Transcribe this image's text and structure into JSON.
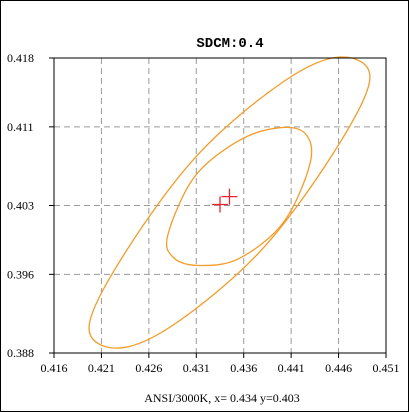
{
  "chart_data": {
    "type": "scatter",
    "title": "SDCM:0.4",
    "caption": "ANSI/3000K, x= 0.434 y=0.403",
    "xlim": [
      0.416,
      0.451
    ],
    "ylim": [
      0.388,
      0.418
    ],
    "x_ticks": [
      0.416,
      0.421,
      0.426,
      0.431,
      0.436,
      0.441,
      0.446,
      0.451
    ],
    "x_tick_labels": [
      "0.416",
      "0.421",
      "0.426",
      "0.431",
      "0.436",
      "0.441",
      "0.446",
      "0.451"
    ],
    "y_ticks": [
      0.418,
      0.411,
      0.403,
      0.396,
      0.388
    ],
    "y_tick_labels": [
      "0.418",
      "0.411",
      "0.403",
      "0.396",
      "0.388"
    ],
    "grid": true,
    "grid_style": "dashed",
    "ellipse_color": "#f39c2a",
    "marker_color": "#e8262b",
    "ellipses": [
      {
        "name": "inner",
        "center": [
          0.4355,
          0.4036
        ],
        "points": [
          [
            0.4425,
            0.4103
          ],
          [
            0.4397,
            0.4109
          ],
          [
            0.4355,
            0.4096
          ],
          [
            0.4308,
            0.4059
          ],
          [
            0.428,
            0.4
          ],
          [
            0.4286,
            0.3977
          ],
          [
            0.4313,
            0.3969
          ],
          [
            0.4355,
            0.3976
          ],
          [
            0.4402,
            0.4013
          ],
          [
            0.443,
            0.4073
          ]
        ]
      },
      {
        "name": "outer",
        "center": [
          0.4345,
          0.4033
        ],
        "points": [
          [
            0.4493,
            0.4159
          ],
          [
            0.4462,
            0.4181
          ],
          [
            0.4402,
            0.4156
          ],
          [
            0.4312,
            0.4082
          ],
          [
            0.4235,
            0.3982
          ],
          [
            0.4197,
            0.3907
          ],
          [
            0.4228,
            0.3885
          ],
          [
            0.4288,
            0.391
          ],
          [
            0.4378,
            0.3984
          ],
          [
            0.4455,
            0.4084
          ]
        ]
      }
    ],
    "cross_markers": [
      {
        "name": "target",
        "x": 0.4345,
        "y": 0.4039
      },
      {
        "name": "measured",
        "x": 0.4335,
        "y": 0.4031
      }
    ]
  }
}
